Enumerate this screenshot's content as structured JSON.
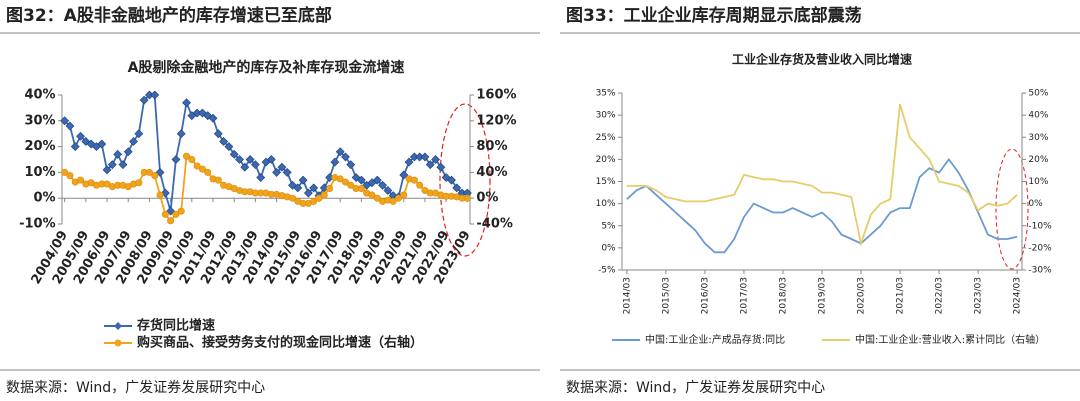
{
  "panels": [
    {
      "header": "图32：A股非金融地产的库存增速已至底部",
      "source": "数据来源：Wind，广发证券发展研究中心"
    },
    {
      "header": "图33：工业企业库存周期显示底部震荡",
      "source": "数据来源：Wind，广发证券发展研究中心"
    }
  ],
  "chart_data": [
    {
      "type": "line",
      "title": "A股剔除金融地产的库存及补库存现金流增速",
      "categories": [
        "2004/09",
        null,
        null,
        null,
        "2005/09",
        null,
        null,
        null,
        "2006/09",
        null,
        null,
        null,
        "2007/09",
        null,
        null,
        null,
        "2008/09",
        null,
        null,
        null,
        "2009/09",
        null,
        null,
        null,
        "2010/09",
        null,
        null,
        null,
        "2011/09",
        null,
        null,
        null,
        "2012/09",
        null,
        null,
        null,
        "2013/09",
        null,
        null,
        null,
        "2014/09",
        null,
        null,
        null,
        "2015/09",
        null,
        null,
        null,
        "2016/09",
        null,
        null,
        null,
        "2017/09",
        null,
        null,
        null,
        "2018/09",
        null,
        null,
        null,
        "2019/09",
        null,
        null,
        null,
        "2020/09",
        null,
        null,
        null,
        "2021/09",
        null,
        null,
        null,
        "2022/09",
        null,
        null,
        null,
        "2023/09"
      ],
      "series": [
        {
          "name": "存货同比增速",
          "color": "#3b68b0",
          "marker": "diamond",
          "axis": "y",
          "values": [
            30,
            28,
            20,
            24,
            22,
            21,
            20,
            21,
            11,
            13,
            17,
            13,
            18,
            22,
            25,
            38,
            40,
            40,
            10,
            2,
            -5,
            15,
            25,
            37,
            32,
            33,
            33,
            32,
            31,
            25,
            22,
            20,
            17,
            15,
            12,
            15,
            13,
            8,
            14,
            15,
            10,
            12,
            10,
            5,
            4,
            7,
            2,
            4,
            1,
            4,
            8,
            14,
            18,
            16,
            13,
            8,
            7,
            5,
            6,
            7,
            5,
            3,
            1,
            0.5,
            9,
            14,
            16,
            16,
            16,
            13,
            15,
            12,
            8,
            7,
            4,
            2,
            2
          ]
        },
        {
          "name": "购买商品、接受劳务支付的现金同比增速（右轴）",
          "color": "#f2a31c",
          "marker": "circle",
          "axis": "y2",
          "values": [
            40,
            35,
            25,
            28,
            22,
            24,
            20,
            22,
            22,
            18,
            20,
            20,
            18,
            22,
            24,
            40,
            40,
            35,
            5,
            -25,
            -35,
            -25,
            -20,
            65,
            60,
            50,
            45,
            40,
            30,
            28,
            20,
            18,
            15,
            12,
            10,
            10,
            8,
            8,
            8,
            6,
            6,
            4,
            2,
            0,
            -5,
            -8,
            -8,
            -5,
            0,
            5,
            15,
            32,
            30,
            25,
            20,
            15,
            15,
            8,
            5,
            0,
            -5,
            -3,
            -5,
            0,
            5,
            30,
            28,
            20,
            12,
            8,
            8,
            5,
            3,
            3,
            2,
            0,
            0
          ]
        }
      ],
      "ylim": [
        -10,
        40
      ],
      "yticks": [
        {
          "value": -10,
          "label": "-10%"
        },
        {
          "value": 0,
          "label": "0%"
        },
        {
          "value": 10,
          "label": "10%"
        },
        {
          "value": 20,
          "label": "20%"
        },
        {
          "value": 30,
          "label": "30%"
        },
        {
          "value": 40,
          "label": "40%"
        }
      ],
      "y2lim": [
        -40,
        160
      ],
      "y2ticks": [
        {
          "value": -40,
          "label": "-40%"
        },
        {
          "value": 0,
          "label": "0%"
        },
        {
          "value": 40,
          "label": "40%"
        },
        {
          "value": 80,
          "label": "80%"
        },
        {
          "value": 120,
          "label": "120%"
        },
        {
          "value": 160,
          "label": "160%"
        }
      ],
      "grid": false
    },
    {
      "type": "line",
      "title": "工业企业存货及营业收入同比增速",
      "categories": [
        "2014/03",
        null,
        null,
        null,
        "2015/03",
        null,
        null,
        null,
        "2016/03",
        null,
        null,
        null,
        "2017/03",
        null,
        null,
        null,
        "2018/03",
        null,
        null,
        null,
        "2019/03",
        null,
        null,
        null,
        "2020/03",
        null,
        null,
        null,
        "2021/03",
        null,
        null,
        null,
        "2022/03",
        null,
        null,
        null,
        "2023/03",
        null,
        null,
        null,
        "2024/03"
      ],
      "series": [
        {
          "name": "中国:工业企业:产成品存货:同比",
          "color": "#6a9bd0",
          "axis": "y",
          "values": [
            11,
            13,
            14,
            12,
            10,
            8,
            6,
            4,
            1,
            -1,
            -1,
            2,
            7,
            10,
            9,
            8,
            8,
            9,
            8,
            7,
            8,
            6,
            3,
            2,
            1,
            3,
            5,
            8,
            9,
            9,
            16,
            18,
            17,
            20,
            17,
            13,
            8,
            3,
            2,
            2,
            2.5
          ]
        },
        {
          "name": "中国:工业企业:营业收入:累计同比（右轴）",
          "color": "#e6cc6a",
          "axis": "y2",
          "values": [
            8,
            8,
            8,
            6,
            3,
            2,
            1,
            1,
            1,
            2,
            3,
            4,
            13,
            12,
            11,
            11,
            10,
            10,
            9,
            8,
            5,
            5,
            4,
            3,
            -18,
            -5,
            0,
            2,
            45,
            30,
            25,
            20,
            10,
            9,
            8,
            5,
            -3,
            0,
            -1,
            0,
            4
          ]
        }
      ],
      "ylim": [
        -5,
        35
      ],
      "yticks": [
        {
          "value": -5,
          "label": "-5%"
        },
        {
          "value": 0,
          "label": "0%"
        },
        {
          "value": 5,
          "label": "5%"
        },
        {
          "value": 10,
          "label": "10%"
        },
        {
          "value": 15,
          "label": "15%"
        },
        {
          "value": 20,
          "label": "20%"
        },
        {
          "value": 25,
          "label": "25%"
        },
        {
          "value": 30,
          "label": "30%"
        },
        {
          "value": 35,
          "label": "35%"
        }
      ],
      "y2lim": [
        -30,
        50
      ],
      "y2ticks": [
        {
          "value": -30,
          "label": "-30%"
        },
        {
          "value": -20,
          "label": "-20%"
        },
        {
          "value": -10,
          "label": "-10%"
        },
        {
          "value": 0,
          "label": "0%"
        },
        {
          "value": 10,
          "label": "10%"
        },
        {
          "value": 20,
          "label": "20%"
        },
        {
          "value": 30,
          "label": "30%"
        },
        {
          "value": 40,
          "label": "40%"
        },
        {
          "value": 50,
          "label": "50%"
        }
      ],
      "grid": false
    }
  ]
}
